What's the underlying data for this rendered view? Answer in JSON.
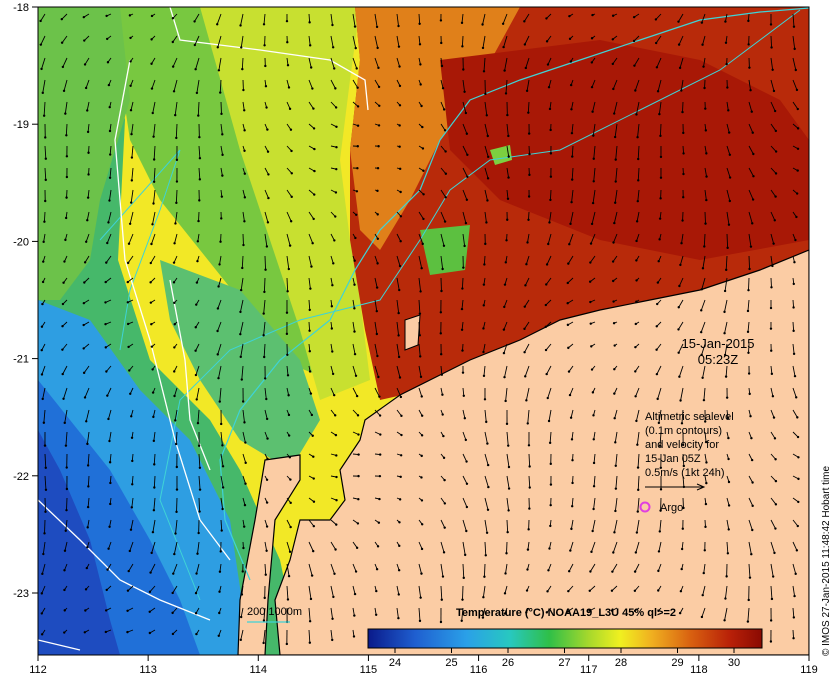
{
  "map": {
    "date": "15-Jan-2015",
    "time": "05:23Z",
    "credit": "© IMOS 27-Jan-2015 11:48:42 Hobart time",
    "lon_ticks": [
      "112",
      "113",
      "114",
      "115",
      "116",
      "117",
      "118",
      "119"
    ],
    "lat_ticks": [
      "-18",
      "-19",
      "-20",
      "-21",
      "-22",
      "-23"
    ],
    "altimetry_note": {
      "line1": "Altimetric sealevel",
      "line2": "(0.1m contours)",
      "line3": "and velocity for",
      "line4": "15-Jan 05Z",
      "line5": "0.5m/s (1kt 24h)"
    },
    "argo_label": "Argo",
    "bathy_legend": "200  1000m",
    "colorbar": {
      "title": "Temperature (°C) NOAA19_L3U 45% ql>=2",
      "ticks": [
        "24",
        "25",
        "26",
        "27",
        "28",
        "29",
        "30"
      ]
    },
    "colors": {
      "land": "#fbcca4",
      "coast": "#000000",
      "bathy_contour": "#3fd3d6",
      "sealevel_contour": "#ffffff",
      "argo": "#e040e0"
    }
  }
}
